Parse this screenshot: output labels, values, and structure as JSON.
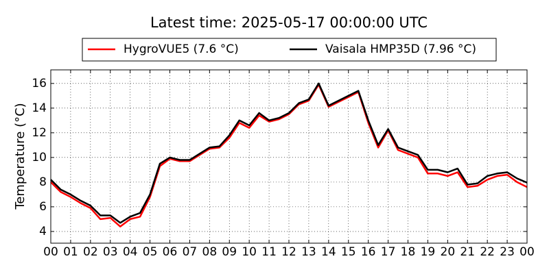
{
  "chart_data": {
    "type": "line",
    "title": "Latest time: 2025-05-17 00:00:00 UTC",
    "ylabel": "Temperature (°C)",
    "x": [
      0,
      0.5,
      1,
      1.5,
      2,
      2.5,
      3,
      3.5,
      4,
      4.5,
      5,
      5.5,
      6,
      6.5,
      7,
      7.5,
      8,
      8.5,
      9,
      9.5,
      10,
      10.5,
      11,
      11.5,
      12,
      12.5,
      13,
      13.5,
      14,
      14.5,
      15,
      15.5,
      16,
      16.5,
      17,
      17.5,
      18,
      18.5,
      19,
      19.5,
      20,
      20.5,
      21,
      21.5,
      22,
      22.5,
      23,
      23.5,
      24
    ],
    "series": [
      {
        "name": "HygroVUE5 (7.6 °C)",
        "color": "#ff0000",
        "values": [
          8.0,
          7.2,
          6.8,
          6.3,
          5.9,
          5.0,
          5.1,
          4.4,
          5.0,
          5.2,
          6.8,
          9.3,
          9.9,
          9.7,
          9.7,
          10.2,
          10.7,
          10.8,
          11.6,
          12.8,
          12.4,
          13.4,
          12.9,
          13.1,
          13.5,
          14.3,
          14.6,
          15.9,
          14.1,
          14.5,
          14.9,
          15.3,
          12.8,
          10.8,
          12.2,
          10.6,
          10.3,
          10.0,
          8.7,
          8.7,
          8.5,
          8.8,
          7.6,
          7.7,
          8.2,
          8.5,
          8.6,
          8.0,
          7.6
        ]
      },
      {
        "name": "Vaisala HMP35D (7.96 °C)",
        "color": "#000000",
        "values": [
          8.2,
          7.4,
          7.0,
          6.5,
          6.1,
          5.3,
          5.3,
          4.7,
          5.2,
          5.5,
          7.0,
          9.5,
          10.0,
          9.8,
          9.8,
          10.3,
          10.8,
          10.9,
          11.8,
          13.0,
          12.6,
          13.6,
          13.0,
          13.2,
          13.6,
          14.4,
          14.7,
          16.0,
          14.2,
          14.6,
          15.0,
          15.4,
          13.0,
          11.0,
          12.3,
          10.8,
          10.5,
          10.2,
          9.0,
          9.0,
          8.8,
          9.1,
          7.8,
          7.9,
          8.5,
          8.7,
          8.8,
          8.3,
          7.96
        ]
      }
    ],
    "xlim": [
      0,
      24
    ],
    "xticks": [
      {
        "value": 0,
        "label": "00"
      },
      {
        "value": 1,
        "label": "01"
      },
      {
        "value": 2,
        "label": "02"
      },
      {
        "value": 3,
        "label": "03"
      },
      {
        "value": 4,
        "label": "04"
      },
      {
        "value": 5,
        "label": "05"
      },
      {
        "value": 6,
        "label": "06"
      },
      {
        "value": 7,
        "label": "07"
      },
      {
        "value": 8,
        "label": "08"
      },
      {
        "value": 9,
        "label": "09"
      },
      {
        "value": 10,
        "label": "10"
      },
      {
        "value": 11,
        "label": "11"
      },
      {
        "value": 12,
        "label": "12"
      },
      {
        "value": 13,
        "label": "13"
      },
      {
        "value": 14,
        "label": "14"
      },
      {
        "value": 15,
        "label": "15"
      },
      {
        "value": 16,
        "label": "16"
      },
      {
        "value": 17,
        "label": "17"
      },
      {
        "value": 18,
        "label": "18"
      },
      {
        "value": 19,
        "label": "19"
      },
      {
        "value": 20,
        "label": "20"
      },
      {
        "value": 21,
        "label": "21"
      },
      {
        "value": 22,
        "label": "22"
      },
      {
        "value": 23,
        "label": "23"
      },
      {
        "value": 24,
        "label": "00"
      }
    ],
    "ylim": [
      3.05,
      17.1
    ],
    "yticks": [
      4,
      6,
      8,
      10,
      12,
      14,
      16
    ],
    "grid": true,
    "legend": "top"
  }
}
